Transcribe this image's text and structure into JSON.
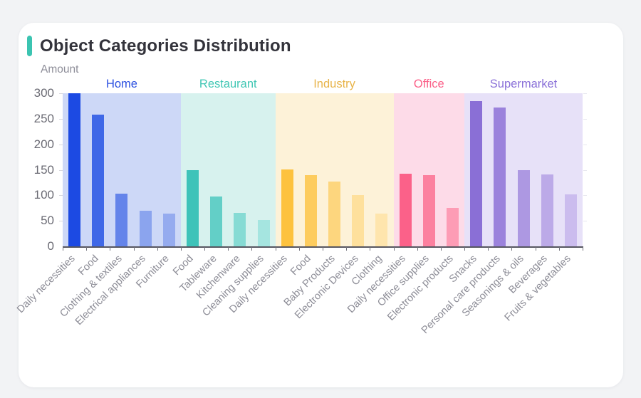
{
  "card": {
    "title": "Object Categories Distribution",
    "accent_color": "#3bc4b1"
  },
  "chart_data": {
    "type": "bar",
    "title": "Object Categories Distribution",
    "ylabel": "Amount",
    "xlabel": "",
    "ylim": [
      0,
      300
    ],
    "yticks": [
      0,
      50,
      100,
      150,
      200,
      250,
      300
    ],
    "grid": false,
    "legend_position": "group-labels-top",
    "groups": [
      {
        "name": "Home",
        "label_color": "#2b50e0",
        "band_color": "#cdd8f7",
        "bar_colors": [
          "#1c4ae3",
          "#3f68e7",
          "#6484ea",
          "#8ba4ee",
          "#95abef"
        ],
        "categories": [
          "Daily necessities",
          "Food",
          "Clothing & textiles",
          "Electrical appliances",
          "Furniture"
        ],
        "values": [
          300,
          258,
          103,
          70,
          64
        ]
      },
      {
        "name": "Restaurant",
        "label_color": "#41c7b4",
        "band_color": "#d7f2ee",
        "bar_colors": [
          "#3ec3b9",
          "#63cfc7",
          "#86dbd4",
          "#a5e5e0"
        ],
        "categories": [
          "Food",
          "Tableware",
          "Kitchenware",
          "Cleaning supplies"
        ],
        "values": [
          149,
          97,
          65,
          51
        ]
      },
      {
        "name": "Industry",
        "label_color": "#e8b44a",
        "band_color": "#fdf2d8",
        "bar_colors": [
          "#fdc23e",
          "#fdcc5e",
          "#fdd67e",
          "#fee09c",
          "#fee5ad"
        ],
        "categories": [
          "Daily necessities",
          "Food",
          "Baby Products",
          "Electronic Devices",
          "Clothing"
        ],
        "values": [
          151,
          139,
          127,
          100,
          64
        ]
      },
      {
        "name": "Office",
        "label_color": "#fb6189",
        "band_color": "#fddbe8",
        "bar_colors": [
          "#fb6189",
          "#fc809f",
          "#fd9cb5"
        ],
        "categories": [
          "Daily necessities",
          "Office supplies",
          "Electronic products"
        ],
        "values": [
          143,
          139,
          76
        ]
      },
      {
        "name": "Supermarket",
        "label_color": "#8a70d8",
        "band_color": "#e7e1f8",
        "bar_colors": [
          "#8a6fd6",
          "#9b82dc",
          "#ad98e2",
          "#bcaae8",
          "#cbbcee"
        ],
        "categories": [
          "Snacks",
          "Personal care products",
          "Seasonings & oils",
          "Beverages",
          "Fruits & vegetables"
        ],
        "values": [
          285,
          272,
          149,
          141,
          102
        ]
      }
    ]
  }
}
